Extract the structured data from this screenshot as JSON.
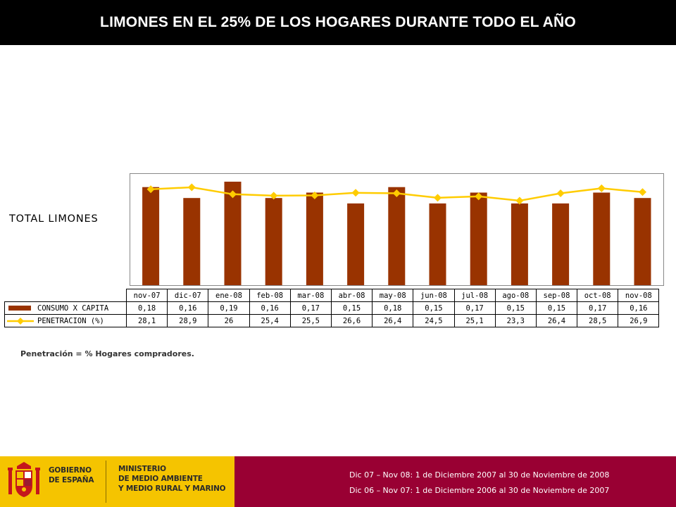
{
  "header": {
    "title": "LIMONES EN EL 25% DE LOS HOGARES DURANTE TODO EL AÑO"
  },
  "chart_label": "TOTAL LIMONES",
  "chart_data": {
    "type": "bar",
    "categories": [
      "nov-07",
      "dic-07",
      "ene-08",
      "feb-08",
      "mar-08",
      "abr-08",
      "may-08",
      "jun-08",
      "jul-08",
      "ago-08",
      "sep-08",
      "oct-08",
      "nov-08"
    ],
    "series": [
      {
        "name": "CONSUMO X CAPITA",
        "type": "bar",
        "color": "#993300",
        "values": [
          0.18,
          0.16,
          0.19,
          0.16,
          0.17,
          0.15,
          0.18,
          0.15,
          0.17,
          0.15,
          0.15,
          0.17,
          0.16
        ],
        "labels": [
          "0,18",
          "0,16",
          "0,19",
          "0,16",
          "0,17",
          "0,15",
          "0,18",
          "0,15",
          "0,17",
          "0,15",
          "0,15",
          "0,17",
          "0,16"
        ]
      },
      {
        "name": "PENETRACION (%)",
        "type": "line",
        "color": "#ffcc00",
        "values": [
          28.1,
          28.9,
          26,
          25.4,
          25.5,
          26.6,
          26.4,
          24.5,
          25.1,
          23.3,
          26.4,
          28.5,
          26.9
        ],
        "labels": [
          "28,1",
          "28,9",
          "26",
          "25,4",
          "25,5",
          "26,6",
          "26,4",
          "24,5",
          "25,1",
          "23,3",
          "26,4",
          "28,5",
          "26,9"
        ]
      }
    ],
    "data_table": true,
    "legend": "table-left"
  },
  "footnote": "Penetración = % Hogares compradores.",
  "footer": {
    "gov_lines": [
      "GOBIERNO",
      "DE ESPAÑA"
    ],
    "ministry_lines": [
      "MINISTERIO",
      "DE MEDIO AMBIENTE",
      "Y MEDIO RURAL Y MARINO"
    ],
    "notes": [
      "Dic 07 – Nov 08: 1 de Diciembre 2007 al 30 de Noviembre de 2008",
      "Dic 06 – Nov 07: 1 de Diciembre 2006 al 30 de Noviembre de 2007"
    ]
  },
  "icons": {
    "emblem": "coat-of-arms-icon"
  }
}
